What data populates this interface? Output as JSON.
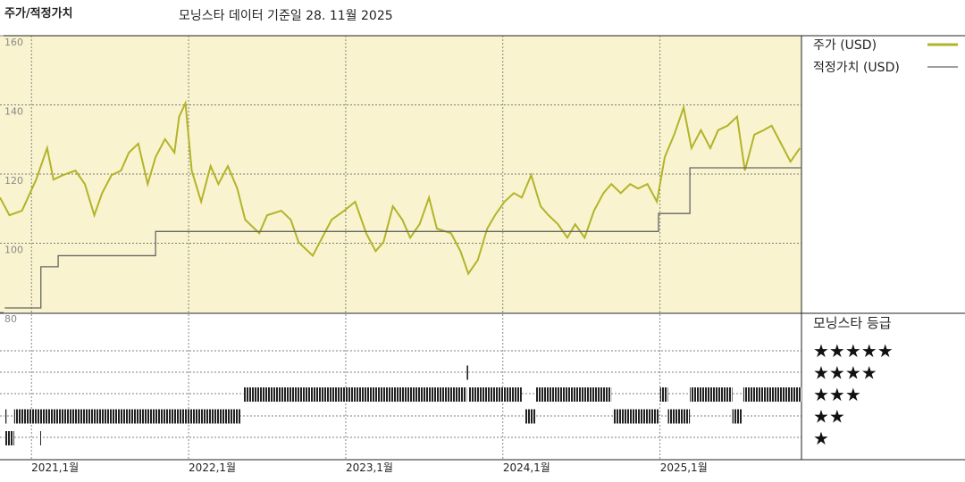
{
  "chart_data": {
    "type": "line",
    "title": "주가/적정가치",
    "subtitle": "모닝스타 데이터 기준일 28. 11월 2025",
    "xlim": [
      2020.8,
      2025.9
    ],
    "xticks": [
      {
        "value": 2021,
        "label": "2021,1월"
      },
      {
        "value": 2022,
        "label": "2022,1월"
      },
      {
        "value": 2023,
        "label": "2023,1월"
      },
      {
        "value": 2024,
        "label": "2024,1월"
      },
      {
        "value": 2025,
        "label": "2025,1월"
      }
    ],
    "ylim": [
      80,
      160
    ],
    "yticks": [
      80,
      100,
      120,
      140,
      160
    ],
    "grid": true,
    "series": [
      {
        "name": "주가 (USD)",
        "color": "#b3b32a",
        "step": false,
        "x": [
          2020.8,
          2020.86,
          2020.94,
          2021.03,
          2021.1,
          2021.14,
          2021.2,
          2021.28,
          2021.34,
          2021.4,
          2021.45,
          2021.51,
          2021.57,
          2021.62,
          2021.68,
          2021.74,
          2021.79,
          2021.85,
          2021.91,
          2021.94,
          2021.98,
          2022.02,
          2022.08,
          2022.14,
          2022.19,
          2022.25,
          2022.31,
          2022.36,
          2022.45,
          2022.5,
          2022.59,
          2022.65,
          2022.7,
          2022.79,
          2022.85,
          2022.91,
          2022.99,
          2023.06,
          2023.13,
          2023.19,
          2023.24,
          2023.3,
          2023.36,
          2023.41,
          2023.47,
          2023.53,
          2023.58,
          2023.67,
          2023.73,
          2023.78,
          2023.84,
          2023.9,
          2023.95,
          2024.01,
          2024.07,
          2024.12,
          2024.18,
          2024.24,
          2024.29,
          2024.35,
          2024.41,
          2024.46,
          2024.52,
          2024.58,
          2024.64,
          2024.69,
          2024.75,
          2024.81,
          2024.86,
          2024.92,
          2024.98,
          2025.03,
          2025.09,
          2025.15,
          2025.2,
          2025.26,
          2025.32,
          2025.37,
          2025.43,
          2025.49,
          2025.54,
          2025.6,
          2025.66,
          2025.71,
          2025.77,
          2025.83,
          2025.89
        ],
        "values": [
          113.2,
          108.1,
          109.4,
          118.4,
          127.5,
          118.4,
          119.7,
          121.0,
          117.1,
          108.1,
          114.5,
          119.7,
          121.0,
          126.2,
          128.8,
          117.1,
          124.9,
          130.1,
          126.2,
          136.6,
          140.5,
          121.0,
          112.0,
          122.3,
          117.1,
          122.3,
          115.8,
          106.8,
          102.9,
          108.1,
          109.4,
          106.8,
          100.3,
          96.4,
          101.6,
          106.8,
          109.4,
          112.0,
          102.9,
          97.7,
          100.3,
          110.7,
          106.8,
          101.6,
          105.5,
          113.2,
          104.2,
          102.9,
          97.7,
          91.2,
          95.1,
          104.2,
          108.1,
          112.0,
          114.5,
          113.2,
          119.7,
          110.7,
          108.1,
          105.5,
          101.6,
          105.5,
          101.6,
          109.4,
          114.5,
          117.1,
          114.5,
          117.1,
          115.8,
          117.1,
          112.0,
          124.9,
          131.4,
          139.2,
          127.5,
          132.7,
          127.5,
          132.7,
          134.0,
          136.6,
          121.0,
          131.4,
          132.7,
          134.0,
          128.8,
          123.6,
          127.5
        ]
      },
      {
        "name": "적정가치 (USD)",
        "color": "#666666",
        "step": true,
        "x": [
          2020.83,
          2021.06,
          2021.17,
          2021.79,
          2024.99,
          2025.19,
          2025.9
        ],
        "values": [
          81.3,
          93.2,
          96.4,
          103.4,
          108.6,
          121.8,
          121.8
        ]
      }
    ],
    "rating": {
      "title": "모닝스타 등급",
      "categories": [
        "★",
        "★★",
        "★★★",
        "★★★★",
        "★★★★★"
      ],
      "start": [
        2020.83,
        2021.05,
        2020.83,
        2020.89,
        2022.35,
        2023.77,
        2023.78,
        2024.14,
        2024.21,
        2024.7,
        2025.0,
        2025.05,
        2025.19,
        2025.46,
        2025.53
      ],
      "end": [
        2020.89,
        2021.055,
        2020.84,
        2022.33,
        2023.77,
        2023.78,
        2024.12,
        2024.21,
        2024.69,
        2024.99,
        2025.05,
        2025.19,
        2025.46,
        2025.52,
        2025.9
      ],
      "stars": [
        1,
        1,
        2,
        2,
        3,
        4,
        3,
        2,
        3,
        2,
        3,
        2,
        3,
        2,
        3
      ]
    }
  }
}
